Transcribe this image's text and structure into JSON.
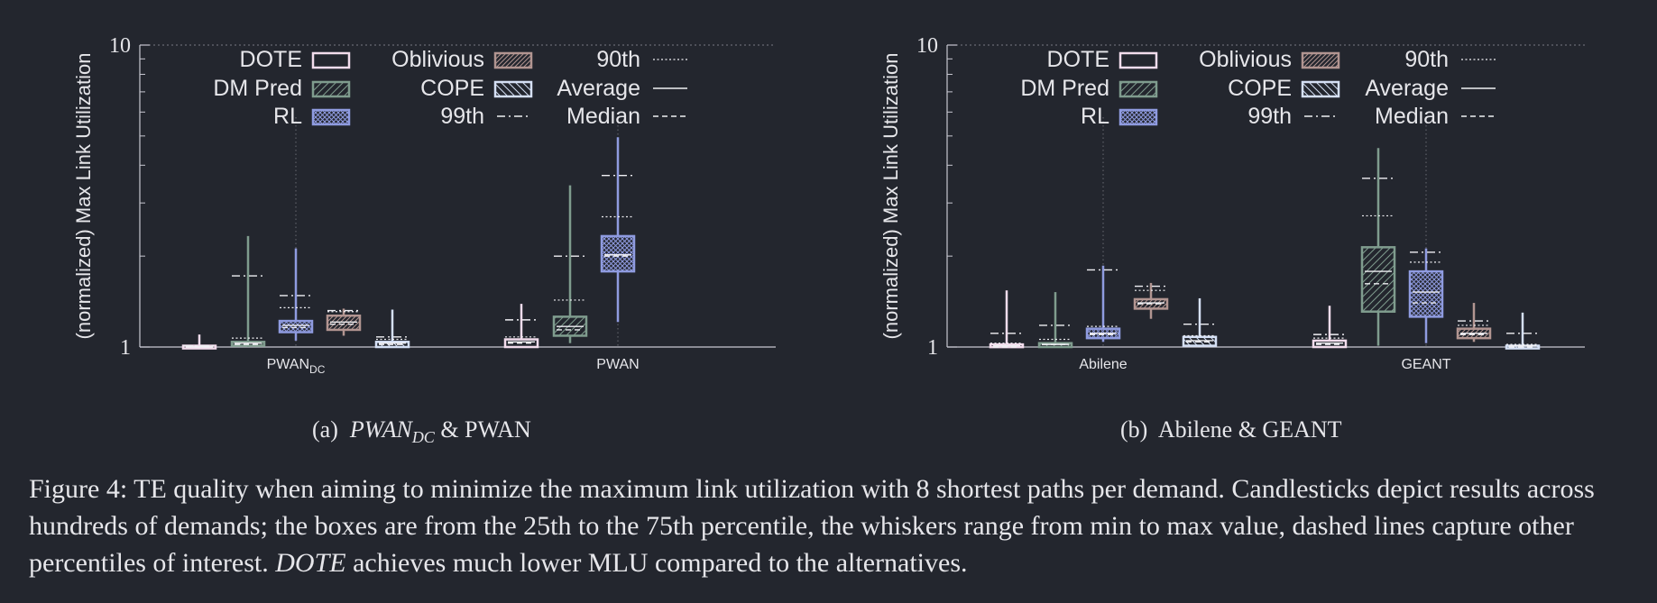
{
  "colors": {
    "background": "#23262e",
    "axis": "#c8c8d2",
    "text": "#e6e6ea",
    "DOTE": "#f2dcec",
    "DM Pred": "#7f9c8e",
    "RL": "#8f9be0",
    "Oblivious": "#b29591",
    "COPE": "#d5e0f5"
  },
  "legend": {
    "items": [
      {
        "label": "DOTE",
        "kind": "box",
        "pattern": "none",
        "color": "DOTE"
      },
      {
        "label": "DM Pred",
        "kind": "box",
        "pattern": "diag-right",
        "color": "DM Pred"
      },
      {
        "label": "RL",
        "kind": "box",
        "pattern": "crosshatch",
        "color": "RL"
      },
      {
        "label": "Oblivious",
        "kind": "box",
        "pattern": "diag-dense",
        "color": "Oblivious"
      },
      {
        "label": "COPE",
        "kind": "box",
        "pattern": "diag-left",
        "color": "COPE"
      },
      {
        "label": "99th",
        "kind": "line",
        "style": "dashdot"
      },
      {
        "label": "90th",
        "kind": "line",
        "style": "dotted"
      },
      {
        "label": "Average",
        "kind": "line",
        "style": "solid"
      },
      {
        "label": "Median",
        "kind": "line",
        "style": "dashed"
      }
    ]
  },
  "chart_data": [
    {
      "type": "boxplot",
      "ylabel": "(normalized) Max Link Utilization",
      "yscale": "log",
      "ylim": [
        1,
        10
      ],
      "yticks": [
        "1",
        "10"
      ],
      "legend_position": "top-left",
      "groups": [
        {
          "label": "PWAN",
          "label_sub": "DC",
          "boxes": [
            {
              "series": "DOTE",
              "min": 1.0,
              "q1": 1.0,
              "median": 1.0,
              "mean": 1.0,
              "q3": 1.01,
              "p90": 1.01,
              "p99": 1.01,
              "max": 1.1
            },
            {
              "series": "DM Pred",
              "min": 1.0,
              "q1": 1.01,
              "median": 1.02,
              "mean": 1.03,
              "q3": 1.04,
              "p90": 1.07,
              "p99": 1.72,
              "max": 2.33
            },
            {
              "series": "RL",
              "min": 1.05,
              "q1": 1.12,
              "median": 1.16,
              "mean": 1.18,
              "q3": 1.22,
              "p90": 1.35,
              "p99": 1.48,
              "max": 2.12
            },
            {
              "series": "Oblivious",
              "min": 1.09,
              "q1": 1.14,
              "median": 1.19,
              "mean": 1.21,
              "q3": 1.27,
              "p90": 1.31,
              "p99": 1.32,
              "max": 1.34
            },
            {
              "series": "COPE",
              "min": 1.0,
              "q1": 1.0,
              "median": 1.02,
              "mean": 1.03,
              "q3": 1.04,
              "p90": 1.06,
              "p99": 1.08,
              "max": 1.33
            }
          ]
        },
        {
          "label": "PWAN",
          "label_sub": "",
          "boxes": [
            {
              "series": "DOTE",
              "min": 1.0,
              "q1": 1.0,
              "median": 1.03,
              "mean": 1.04,
              "q3": 1.06,
              "p90": 1.08,
              "p99": 1.23,
              "max": 1.39
            },
            {
              "series": "DM Pred",
              "min": 1.03,
              "q1": 1.09,
              "median": 1.14,
              "mean": 1.17,
              "q3": 1.26,
              "p90": 1.43,
              "p99": 2.0,
              "max": 3.43
            },
            {
              "series": "RL",
              "min": 1.21,
              "q1": 1.78,
              "median": 2.0,
              "mean": 2.02,
              "q3": 2.33,
              "p90": 2.7,
              "p99": 3.7,
              "max": 4.95
            },
            {
              "series": "Oblivious",
              "none": true
            },
            {
              "series": "COPE",
              "none": true
            }
          ]
        }
      ]
    },
    {
      "type": "boxplot",
      "ylabel": "(normalized) Max Link Utilization",
      "yscale": "log",
      "ylim": [
        1,
        10
      ],
      "yticks": [
        "1",
        "10"
      ],
      "legend_position": "top-left",
      "groups": [
        {
          "label": "Abilene",
          "label_sub": "",
          "boxes": [
            {
              "series": "DOTE",
              "min": 1.0,
              "q1": 1.0,
              "median": 1.0,
              "mean": 1.01,
              "q3": 1.02,
              "p90": 1.03,
              "p99": 1.11,
              "max": 1.54
            },
            {
              "series": "DM Pred",
              "min": 1.0,
              "q1": 1.0,
              "median": 1.02,
              "mean": 1.02,
              "q3": 1.03,
              "p90": 1.06,
              "p99": 1.18,
              "max": 1.52
            },
            {
              "series": "RL",
              "min": 1.04,
              "q1": 1.07,
              "median": 1.1,
              "mean": 1.11,
              "q3": 1.15,
              "p90": 1.17,
              "p99": 1.8,
              "max": 1.86
            },
            {
              "series": "Oblivious",
              "min": 1.24,
              "q1": 1.34,
              "median": 1.39,
              "mean": 1.4,
              "q3": 1.44,
              "p90": 1.54,
              "p99": 1.59,
              "max": 1.63
            },
            {
              "series": "COPE",
              "min": 1.0,
              "q1": 1.01,
              "median": 1.04,
              "mean": 1.05,
              "q3": 1.08,
              "p90": 1.09,
              "p99": 1.19,
              "max": 1.45
            }
          ]
        },
        {
          "label": "GEANT",
          "label_sub": "",
          "boxes": [
            {
              "series": "DOTE",
              "min": 1.0,
              "q1": 1.0,
              "median": 1.02,
              "mean": 1.03,
              "q3": 1.05,
              "p90": 1.07,
              "p99": 1.1,
              "max": 1.37
            },
            {
              "series": "DM Pred",
              "min": 1.01,
              "q1": 1.31,
              "median": 1.62,
              "mean": 1.78,
              "q3": 2.14,
              "p90": 2.72,
              "p99": 3.62,
              "max": 4.56
            },
            {
              "series": "RL",
              "min": 1.03,
              "q1": 1.26,
              "median": 1.4,
              "mean": 1.52,
              "q3": 1.78,
              "p90": 1.91,
              "p99": 2.06,
              "max": 2.12
            },
            {
              "series": "Oblivious",
              "min": 1.04,
              "q1": 1.07,
              "median": 1.1,
              "mean": 1.11,
              "q3": 1.15,
              "p90": 1.18,
              "p99": 1.22,
              "max": 1.4
            },
            {
              "series": "COPE",
              "min": 1.0,
              "q1": 1.0,
              "median": 1.0,
              "mean": 1.01,
              "q3": 1.01,
              "p90": 1.02,
              "p99": 1.11,
              "max": 1.3
            }
          ]
        }
      ]
    }
  ],
  "subcaptions": {
    "a": {
      "tag": "(a)",
      "name": "PWAN",
      "name_sub": "DC",
      "rest": " & PWAN"
    },
    "b": {
      "tag": "(b)",
      "text": "Abilene & GEANT"
    }
  },
  "caption": {
    "prefix": "Figure 4: TE quality when aiming to minimize the maximum link utilization with 8 shortest paths per demand. Candlesticks depict results across hundreds of demands; the boxes are from the 25th to the 75th percentile, the whiskers range from min to max value, dashed lines capture other percentiles of interest. ",
    "emph": "DOTE",
    "suffix": " achieves much lower MLU compared to the alternatives."
  }
}
